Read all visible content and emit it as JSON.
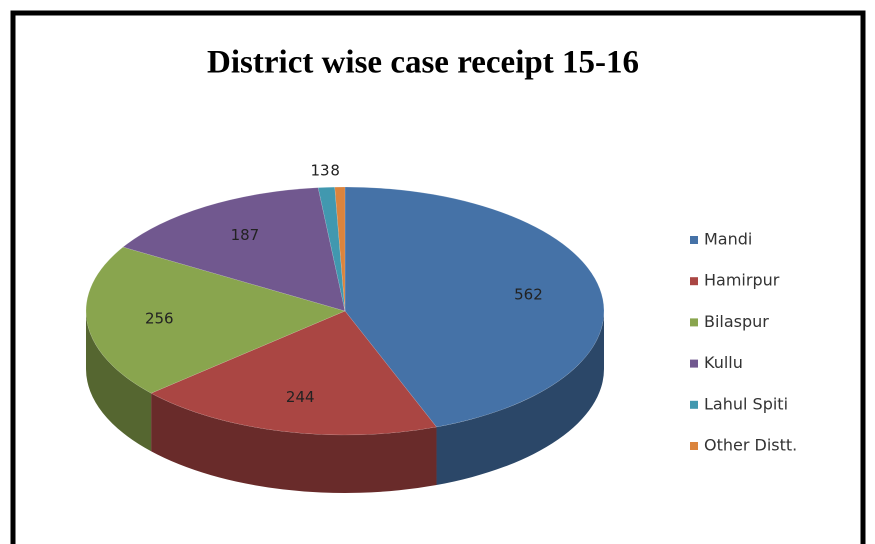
{
  "chart_data": {
    "type": "pie",
    "title": "District wise case receipt 15-16",
    "categories": [
      "Mandi",
      "Hamirpur",
      "Bilaspur",
      "Kullu",
      "Lahul Spiti",
      "Other Distt."
    ],
    "values": [
      562,
      244,
      256,
      187,
      13,
      8
    ],
    "colors": [
      "#4572A7",
      "#AA4643",
      "#89A54E",
      "#71588F",
      "#4198AF",
      "#DB843D"
    ],
    "legend": "right"
  }
}
